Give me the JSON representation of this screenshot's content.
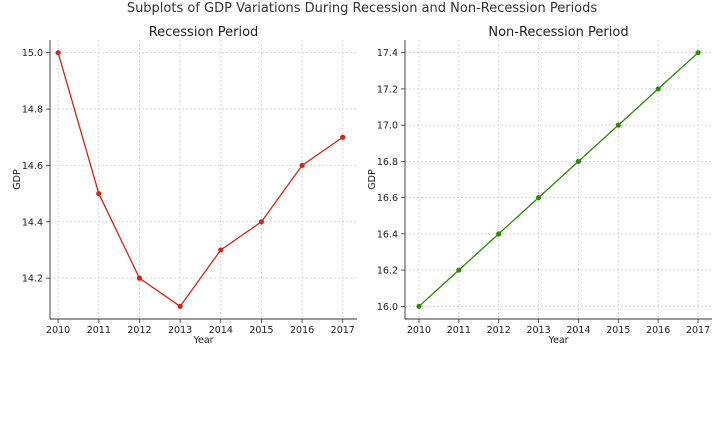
{
  "figure": {
    "suptitle": "Subplots of GDP Variations During Recession and Non-Recession Periods"
  },
  "chart_data": [
    {
      "type": "line",
      "title": "Recession Period",
      "xlabel": "Year",
      "ylabel": "GDP",
      "x": [
        2010,
        2011,
        2012,
        2013,
        2014,
        2015,
        2016,
        2017
      ],
      "series": [
        {
          "values": [
            15.0,
            14.5,
            14.2,
            14.1,
            14.3,
            14.4,
            14.6,
            14.7
          ],
          "color": "#d62418"
        }
      ],
      "xlim": [
        2009.8,
        2017.35
      ],
      "ylim": [
        14.055,
        15.045
      ],
      "yticks": [
        14.2,
        14.4,
        14.6,
        14.8,
        15.0
      ],
      "ytick_labels": [
        "14.2",
        "14.4",
        "14.6",
        "14.8",
        "15.0"
      ],
      "xticks": [
        2010,
        2011,
        2012,
        2013,
        2014,
        2015,
        2016,
        2017
      ],
      "xtick_labels": [
        "2010",
        "2011",
        "2012",
        "2013",
        "2014",
        "2015",
        "2016",
        "2017"
      ],
      "grid": true,
      "marker": "circle"
    },
    {
      "type": "line",
      "title": "Non-Recession Period",
      "xlabel": "Year",
      "ylabel": "GDP",
      "x": [
        2010,
        2011,
        2012,
        2013,
        2014,
        2015,
        2016,
        2017
      ],
      "series": [
        {
          "values": [
            16.0,
            16.2,
            16.4,
            16.6,
            16.8,
            17.0,
            17.2,
            17.4
          ],
          "color": "#2e8b0a"
        }
      ],
      "xlim": [
        2009.65,
        2017.35
      ],
      "ylim": [
        15.93,
        17.47
      ],
      "yticks": [
        16.0,
        16.2,
        16.4,
        16.6,
        16.8,
        17.0,
        17.2,
        17.4
      ],
      "ytick_labels": [
        "16.0",
        "16.2",
        "16.4",
        "16.6",
        "16.8",
        "17.0",
        "17.2",
        "17.4"
      ],
      "xticks": [
        2010,
        2011,
        2012,
        2013,
        2014,
        2015,
        2016,
        2017
      ],
      "xtick_labels": [
        "2010",
        "2011",
        "2012",
        "2013",
        "2014",
        "2015",
        "2016",
        "2017"
      ],
      "grid": true,
      "marker": "circle"
    }
  ]
}
